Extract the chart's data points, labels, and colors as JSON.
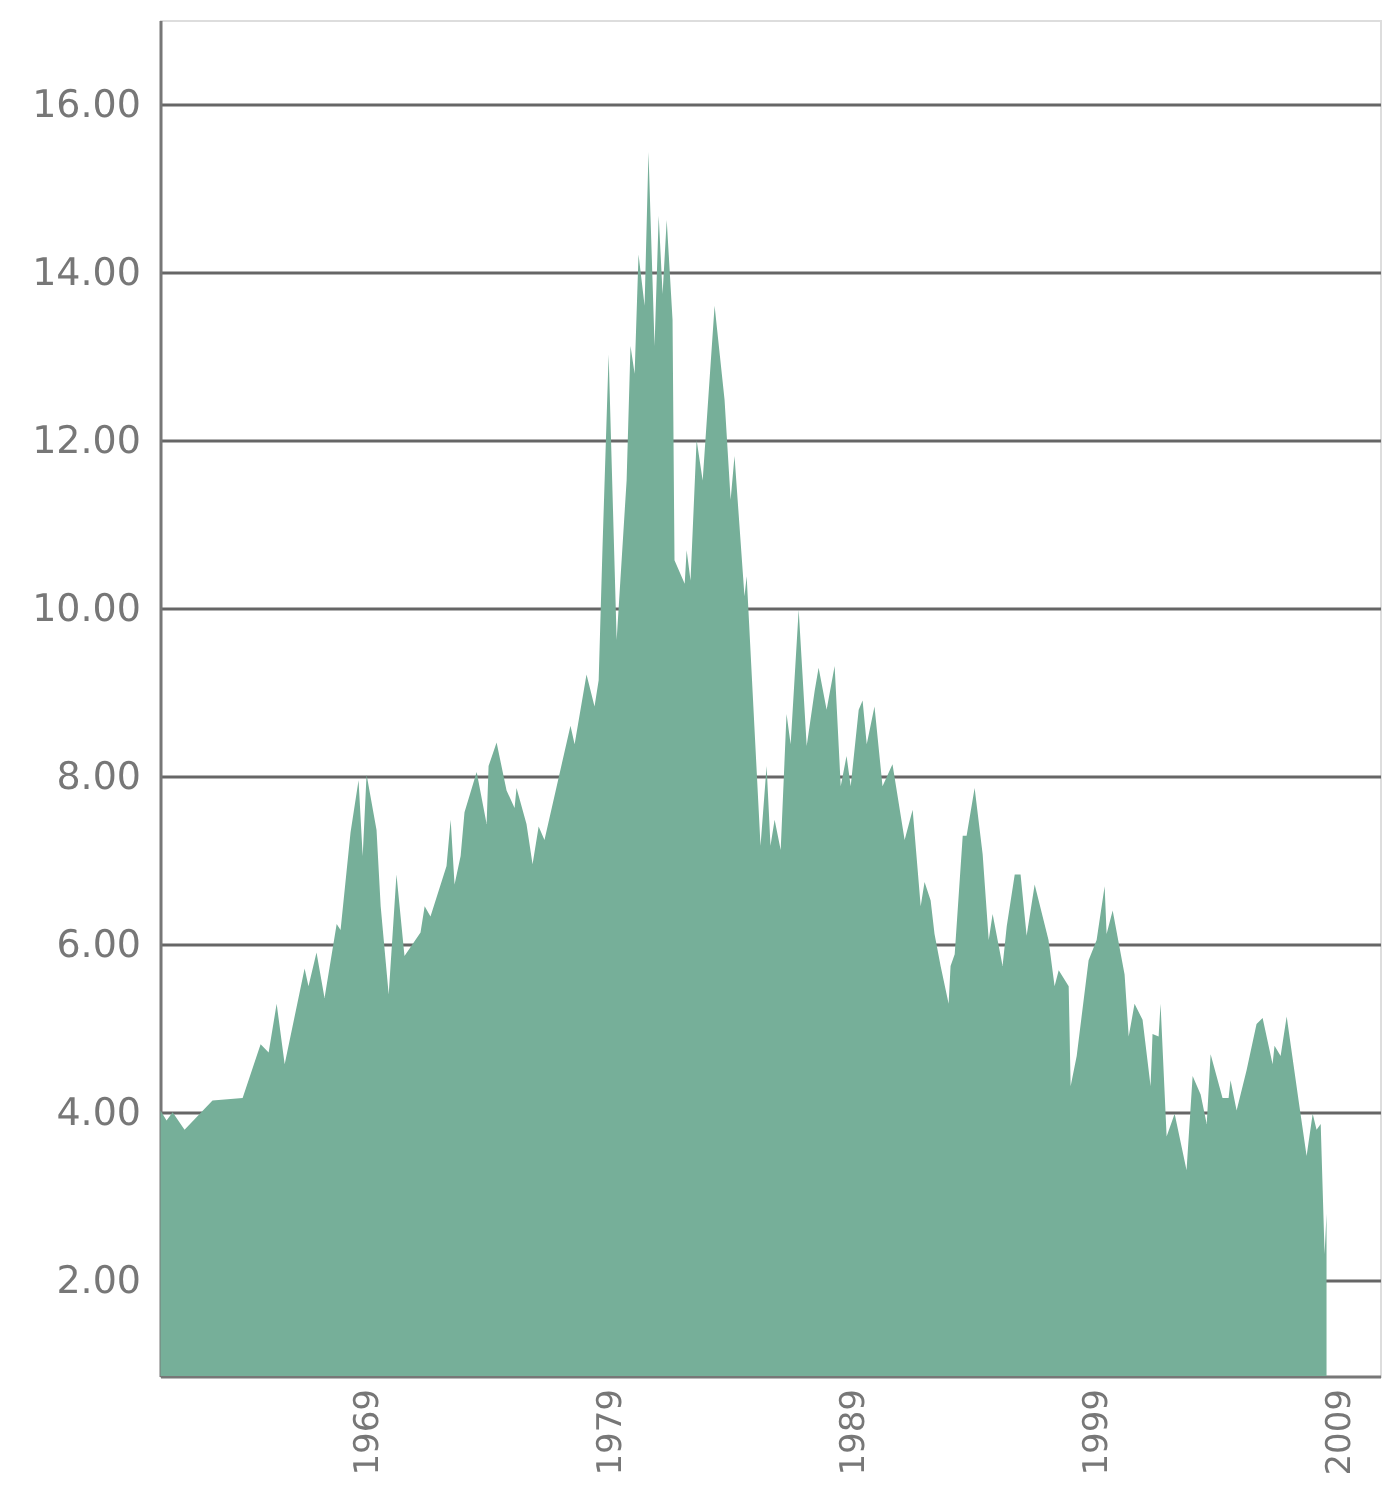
{
  "chart_data": {
    "type": "area",
    "grid": "y",
    "xlim": [
      1960.5,
      2010.7
    ],
    "ylim": [
      0.86,
      17
    ],
    "xticks": [
      1969,
      1979,
      1989,
      1999,
      2009
    ],
    "yticks": [
      {
        "value": 2,
        "label": "2.00"
      },
      {
        "value": 4,
        "label": "4.00"
      },
      {
        "value": 6,
        "label": "6.00"
      },
      {
        "value": 8,
        "label": "8.00"
      },
      {
        "value": 10,
        "label": "10.00"
      },
      {
        "value": 12,
        "label": "12.00"
      },
      {
        "value": 14,
        "label": "14.00"
      },
      {
        "value": 16,
        "label": "16.00"
      }
    ],
    "series": [
      {
        "color": "#76af99",
        "x": [
          1960.52,
          1960.77,
          1961.02,
          1961.51,
          1962.66,
          1963.9,
          1964.64,
          1964.97,
          1965.3,
          1965.63,
          1966.45,
          1966.61,
          1966.94,
          1967.27,
          1967.77,
          1967.93,
          1968.34,
          1968.67,
          1968.84,
          1969.0,
          1969.41,
          1969.58,
          1969.91,
          1970.23,
          1970.56,
          1971.22,
          1971.39,
          1971.63,
          1972.29,
          1972.46,
          1972.62,
          1972.87,
          1973.03,
          1973.53,
          1973.94,
          1974.02,
          1974.35,
          1974.76,
          1975.09,
          1975.17,
          1975.58,
          1975.83,
          1976.08,
          1976.32,
          1977.39,
          1977.56,
          1978.05,
          1978.38,
          1978.55,
          1978.71,
          1978.96,
          1979.29,
          1979.7,
          1979.86,
          1980.03,
          1980.19,
          1980.44,
          1980.6,
          1980.85,
          1981.02,
          1981.18,
          1981.35,
          1981.59,
          1981.67,
          1982.09,
          1982.17,
          1982.33,
          1982.58,
          1982.83,
          1983.32,
          1983.73,
          1983.98,
          1984.14,
          1984.55,
          1984.64,
          1985.21,
          1985.46,
          1985.62,
          1985.79,
          1986.04,
          1986.28,
          1986.45,
          1986.78,
          1987.11,
          1987.44,
          1987.6,
          1987.93,
          1988.26,
          1988.51,
          1988.75,
          1988.92,
          1989.25,
          1989.41,
          1989.58,
          1989.9,
          1990.23,
          1990.64,
          1991.14,
          1991.47,
          1991.8,
          1991.96,
          1992.21,
          1992.37,
          1992.62,
          1992.95,
          1993.03,
          1993.2,
          1993.53,
          1993.69,
          1994.02,
          1994.35,
          1994.6,
          1994.76,
          1995.17,
          1995.34,
          1995.67,
          1995.91,
          1996.16,
          1996.49,
          1997.06,
          1997.31,
          1997.48,
          1997.89,
          1997.97,
          1998.22,
          1998.71,
          1999.04,
          1999.37,
          1999.45,
          1999.7,
          2000.19,
          2000.36,
          2000.6,
          2000.93,
          2001.26,
          2001.34,
          2001.59,
          2001.67,
          2001.92,
          2002.25,
          2002.74,
          2002.99,
          2003.32,
          2003.57,
          2003.73,
          2004.22,
          2004.47,
          2004.55,
          2004.8,
          2005.21,
          2005.62,
          2005.87,
          2006.28,
          2006.36,
          2006.61,
          2006.86,
          2007.35,
          2007.68,
          2007.93,
          2008.09,
          2008.26,
          2008.42,
          2008.5
        ],
        "values": [
          4.02,
          3.9,
          4.0,
          3.79,
          4.14,
          4.17,
          4.81,
          4.71,
          5.29,
          4.57,
          5.71,
          5.5,
          5.9,
          5.36,
          6.24,
          6.17,
          7.33,
          7.95,
          7.05,
          8.02,
          7.36,
          6.45,
          5.4,
          6.83,
          5.86,
          6.14,
          6.45,
          6.33,
          6.93,
          7.48,
          6.71,
          7.05,
          7.57,
          8.05,
          7.43,
          8.12,
          8.4,
          7.83,
          7.62,
          7.86,
          7.43,
          6.95,
          7.4,
          7.24,
          8.6,
          8.38,
          9.21,
          8.83,
          9.14,
          10.74,
          13.02,
          9.62,
          11.52,
          13.12,
          12.79,
          14.21,
          13.6,
          15.43,
          13.12,
          14.67,
          13.74,
          14.62,
          13.43,
          10.57,
          10.29,
          10.69,
          10.33,
          12.0,
          11.52,
          13.6,
          12.48,
          11.29,
          11.81,
          10.14,
          10.38,
          7.17,
          8.12,
          7.17,
          7.48,
          7.12,
          8.74,
          8.38,
          9.98,
          8.36,
          9.02,
          9.29,
          8.79,
          9.31,
          7.88,
          8.24,
          7.88,
          8.79,
          8.9,
          8.38,
          8.83,
          7.88,
          8.14,
          7.24,
          7.6,
          6.45,
          6.74,
          6.52,
          6.12,
          5.74,
          5.29,
          5.74,
          5.88,
          7.29,
          7.29,
          7.86,
          7.07,
          6.05,
          6.36,
          5.74,
          6.21,
          6.83,
          6.83,
          6.1,
          6.71,
          6.05,
          5.5,
          5.69,
          5.5,
          4.31,
          4.67,
          5.81,
          6.05,
          6.69,
          6.12,
          6.4,
          5.64,
          4.9,
          5.29,
          5.1,
          4.31,
          4.93,
          4.9,
          5.29,
          3.71,
          3.98,
          3.31,
          4.43,
          4.21,
          3.86,
          4.69,
          4.17,
          4.17,
          4.38,
          4.02,
          4.5,
          5.05,
          5.12,
          4.57,
          4.79,
          4.67,
          5.14,
          4.14,
          3.48,
          3.98,
          3.79,
          3.86,
          2.31,
          2.79
        ]
      }
    ]
  }
}
